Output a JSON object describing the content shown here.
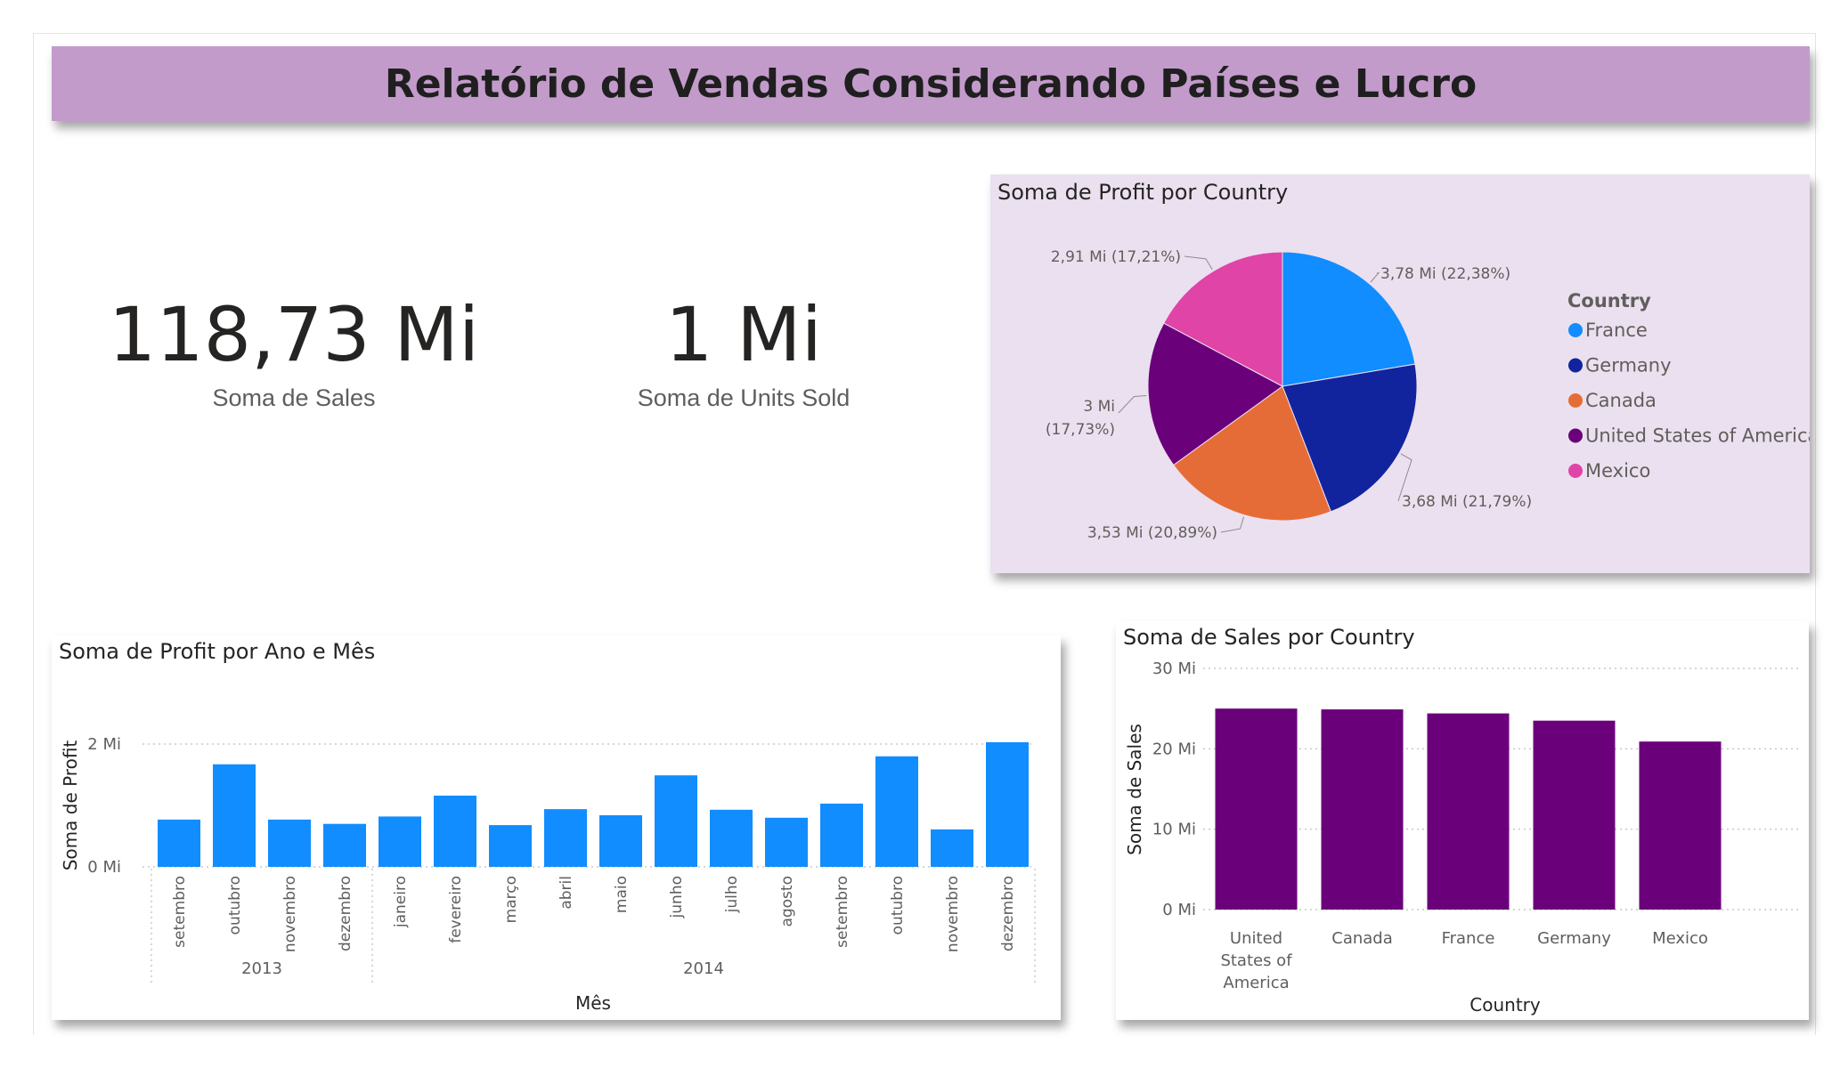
{
  "report_title": "Relatório de Vendas Considerando Países e Lucro",
  "cards": [
    {
      "value": "118,73 Mi",
      "label": "Soma de  Sales"
    },
    {
      "value": "1 Mi",
      "label": "Soma de Units Sold"
    }
  ],
  "colors": {
    "title_bar": "#c39bcb",
    "pie_panel": "#ebe0ef",
    "line_bar": "#118dff",
    "sales_bar": "#6b007b"
  },
  "chart_data": [
    {
      "type": "pie",
      "title": "Soma de Profit por Country",
      "legend_title": "Country",
      "legend_position": "right",
      "slices": [
        {
          "name": "France",
          "value": 3.78,
          "label": "3,78 Mi (22,38%)",
          "color": "#118dff"
        },
        {
          "name": "Germany",
          "value": 3.68,
          "label": "3,68 Mi (21,79%)",
          "color": "#12239e"
        },
        {
          "name": "Canada",
          "value": 3.53,
          "label": "3,53 Mi (20,89%)",
          "color": "#e66c37"
        },
        {
          "name": "United States of America",
          "value": 3.0,
          "label": "3 Mi\n(17,73%)",
          "color": "#6b007b"
        },
        {
          "name": "Mexico",
          "value": 2.91,
          "label": "2,91 Mi (17,21%)",
          "color": "#e044a7"
        }
      ]
    },
    {
      "type": "bar",
      "title": "Soma de Profit por Ano e Mês",
      "xlabel": "Mês",
      "ylabel": "Soma de Profit",
      "yticks": [
        "0 Mi",
        "2 Mi"
      ],
      "ylim": [
        0,
        2
      ],
      "grid": true,
      "categories": [
        "setembro",
        "outubro",
        "novembro",
        "dezembro",
        "janeiro",
        "fevereiro",
        "março",
        "abril",
        "maio",
        "junho",
        "julho",
        "agosto",
        "setembro",
        "outubro",
        "novembro",
        "dezembro"
      ],
      "groups": [
        {
          "label": "2013",
          "count": 4
        },
        {
          "label": "2014",
          "count": 12
        }
      ],
      "values": [
        0.77,
        1.67,
        0.77,
        0.7,
        0.82,
        1.16,
        0.68,
        0.94,
        0.84,
        1.49,
        0.93,
        0.8,
        1.03,
        1.8,
        0.61,
        2.03
      ],
      "color": "#118dff"
    },
    {
      "type": "bar",
      "title": "Soma de Sales por Country",
      "xlabel": "Country",
      "ylabel": "Soma de Sales",
      "yticks": [
        "0 Mi",
        "10 Mi",
        "20 Mi",
        "30 Mi"
      ],
      "ylim": [
        0,
        30
      ],
      "grid": true,
      "categories": [
        "United States of America",
        "Canada",
        "France",
        "Germany",
        "Mexico"
      ],
      "category_lines": [
        [
          "United",
          "States of",
          "America"
        ],
        [
          "Canada"
        ],
        [
          "France"
        ],
        [
          "Germany"
        ],
        [
          "Mexico"
        ]
      ],
      "values": [
        25.0,
        24.9,
        24.4,
        23.5,
        20.9
      ],
      "color": "#6b007b"
    }
  ]
}
